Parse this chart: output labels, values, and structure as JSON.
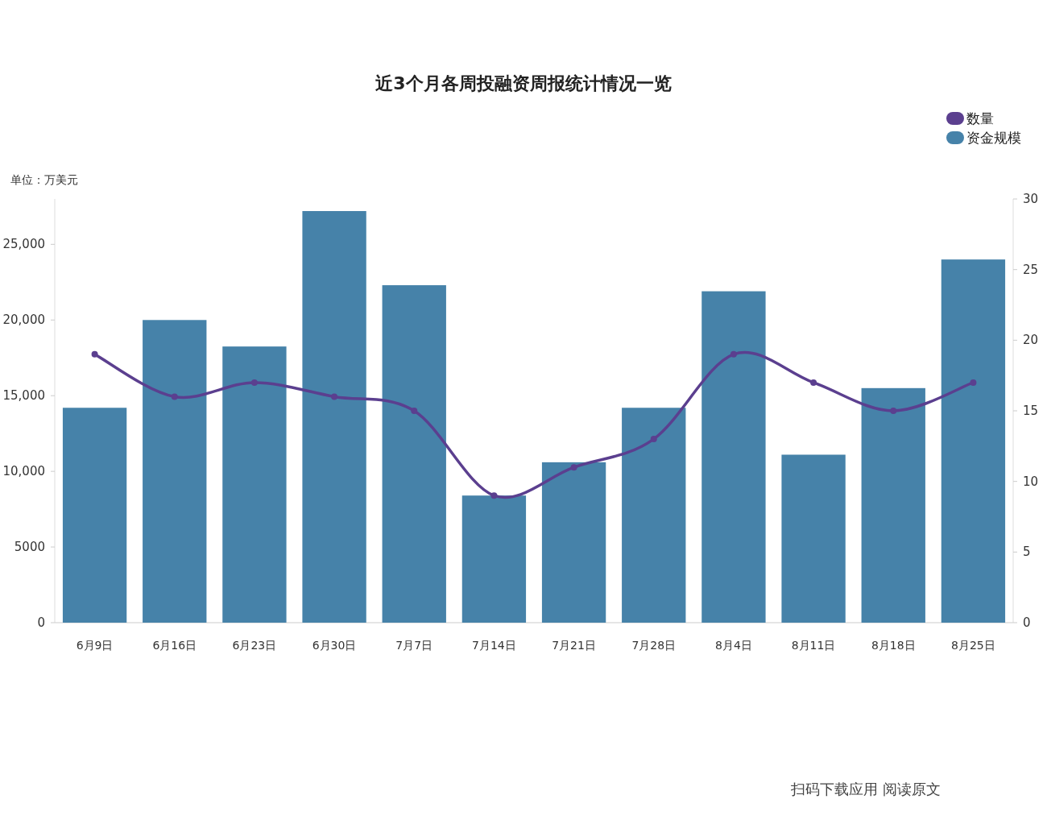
{
  "chart_data": {
    "type": "bar",
    "title": "近3个月各周投融资周报统计情况一览",
    "ylabel": "单位：万美元",
    "annotations": [
      "扫码下载应用 阅读原文"
    ],
    "categories": [
      "6月9日",
      "6月16日",
      "6月23日",
      "6月30日",
      "7月7日",
      "7月14日",
      "7月21日",
      "7月28日",
      "8月4日",
      "8月11日",
      "8月18日",
      "8月25日"
    ],
    "series": [
      {
        "name": "数量",
        "type": "line",
        "axis": "y2",
        "color": "#5b3f8f",
        "values": [
          19,
          16,
          17,
          16,
          15,
          9,
          11,
          13,
          19,
          17,
          15,
          17
        ]
      },
      {
        "name": "资金规模",
        "color": "#4682a9",
        "values": [
          14200,
          20000,
          18250,
          27200,
          22300,
          8400,
          10600,
          14200,
          21900,
          11100,
          15500,
          24000
        ]
      }
    ],
    "ylim": [
      0,
      28000
    ],
    "yticks": [
      0,
      5000,
      {
        "value": 10000,
        "label": "10,000"
      },
      {
        "value": 15000,
        "label": "15,000"
      },
      {
        "value": 20000,
        "label": "20,000"
      },
      {
        "value": 25000,
        "label": "25,000"
      }
    ],
    "y2lim": [
      0,
      30
    ],
    "y2ticks": [
      0,
      5,
      10,
      15,
      20,
      25,
      30
    ],
    "marker": "circle",
    "legend": "top right",
    "grid": false
  }
}
